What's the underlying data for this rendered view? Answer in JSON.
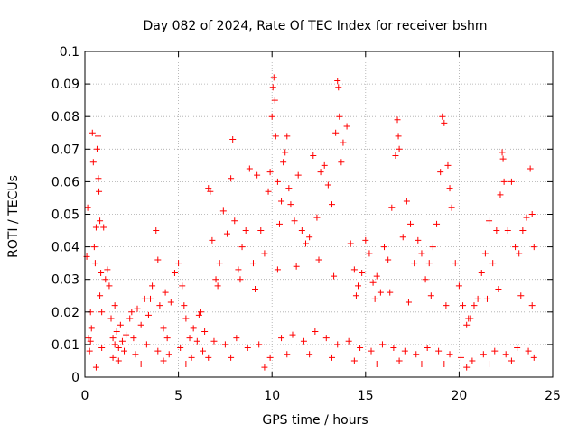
{
  "chart_data": {
    "type": "scatter",
    "title": "Day 082 of 2024, Rate Of TEC Index for receiver bshm",
    "xlabel": "GPS time / hours",
    "ylabel": "ROTI / TECUs",
    "xlim": [
      0,
      25
    ],
    "ylim": [
      0,
      0.1
    ],
    "x_ticks": [
      "0",
      "5",
      "10",
      "15",
      "20",
      "25"
    ],
    "y_ticks": [
      "0",
      "0.01",
      "0.02",
      "0.03",
      "0.04",
      "0.05",
      "0.06",
      "0.07",
      "0.08",
      "0.09",
      "0.1"
    ],
    "grid": true,
    "marker": "+",
    "color": "#ff0000",
    "points": [
      [
        0.1,
        0.037
      ],
      [
        0.15,
        0.052
      ],
      [
        0.2,
        0.012
      ],
      [
        0.25,
        0.008
      ],
      [
        0.3,
        0.02
      ],
      [
        0.35,
        0.015
      ],
      [
        0.4,
        0.075
      ],
      [
        0.45,
        0.066
      ],
      [
        0.5,
        0.04
      ],
      [
        0.55,
        0.035
      ],
      [
        0.6,
        0.046
      ],
      [
        0.65,
        0.07
      ],
      [
        0.7,
        0.074
      ],
      [
        0.72,
        0.061
      ],
      [
        0.75,
        0.057
      ],
      [
        0.8,
        0.048
      ],
      [
        0.85,
        0.032
      ],
      [
        0.9,
        0.02
      ],
      [
        1.0,
        0.046
      ],
      [
        1.1,
        0.03
      ],
      [
        1.2,
        0.033
      ],
      [
        1.3,
        0.028
      ],
      [
        1.4,
        0.018
      ],
      [
        1.5,
        0.012
      ],
      [
        1.6,
        0.01
      ],
      [
        1.7,
        0.014
      ],
      [
        1.8,
        0.009
      ],
      [
        1.9,
        0.016
      ],
      [
        2.0,
        0.011
      ],
      [
        2.2,
        0.013
      ],
      [
        2.4,
        0.018
      ],
      [
        2.6,
        0.012
      ],
      [
        2.8,
        0.021
      ],
      [
        3.0,
        0.016
      ],
      [
        3.2,
        0.024
      ],
      [
        3.4,
        0.019
      ],
      [
        3.6,
        0.028
      ],
      [
        3.8,
        0.045
      ],
      [
        3.9,
        0.036
      ],
      [
        4.0,
        0.022
      ],
      [
        4.2,
        0.015
      ],
      [
        4.4,
        0.012
      ],
      [
        4.6,
        0.023
      ],
      [
        4.8,
        0.032
      ],
      [
        5.0,
        0.035
      ],
      [
        5.2,
        0.028
      ],
      [
        5.4,
        0.018
      ],
      [
        5.6,
        0.012
      ],
      [
        5.8,
        0.015
      ],
      [
        6.0,
        0.011
      ],
      [
        6.2,
        0.02
      ],
      [
        6.4,
        0.014
      ],
      [
        6.6,
        0.058
      ],
      [
        6.7,
        0.057
      ],
      [
        6.8,
        0.042
      ],
      [
        7.0,
        0.03
      ],
      [
        7.2,
        0.035
      ],
      [
        7.4,
        0.051
      ],
      [
        7.6,
        0.044
      ],
      [
        7.8,
        0.061
      ],
      [
        7.9,
        0.073
      ],
      [
        8.0,
        0.048
      ],
      [
        8.2,
        0.033
      ],
      [
        8.4,
        0.04
      ],
      [
        8.6,
        0.045
      ],
      [
        8.8,
        0.064
      ],
      [
        9.0,
        0.035
      ],
      [
        9.2,
        0.062
      ],
      [
        9.4,
        0.045
      ],
      [
        9.6,
        0.038
      ],
      [
        9.8,
        0.057
      ],
      [
        9.9,
        0.063
      ],
      [
        10.0,
        0.08
      ],
      [
        10.05,
        0.089
      ],
      [
        10.1,
        0.092
      ],
      [
        10.15,
        0.085
      ],
      [
        10.2,
        0.074
      ],
      [
        10.3,
        0.06
      ],
      [
        10.4,
        0.047
      ],
      [
        10.5,
        0.054
      ],
      [
        10.6,
        0.066
      ],
      [
        10.7,
        0.069
      ],
      [
        10.8,
        0.074
      ],
      [
        10.9,
        0.058
      ],
      [
        11.0,
        0.053
      ],
      [
        11.2,
        0.048
      ],
      [
        11.4,
        0.062
      ],
      [
        11.6,
        0.045
      ],
      [
        11.8,
        0.041
      ],
      [
        12.0,
        0.043
      ],
      [
        12.2,
        0.068
      ],
      [
        12.4,
        0.049
      ],
      [
        12.6,
        0.063
      ],
      [
        12.8,
        0.065
      ],
      [
        13.0,
        0.059
      ],
      [
        13.2,
        0.053
      ],
      [
        13.4,
        0.075
      ],
      [
        13.5,
        0.091
      ],
      [
        13.55,
        0.089
      ],
      [
        13.6,
        0.08
      ],
      [
        13.7,
        0.066
      ],
      [
        13.8,
        0.072
      ],
      [
        14.0,
        0.077
      ],
      [
        14.2,
        0.041
      ],
      [
        14.4,
        0.033
      ],
      [
        14.6,
        0.028
      ],
      [
        14.8,
        0.032
      ],
      [
        15.0,
        0.042
      ],
      [
        15.2,
        0.038
      ],
      [
        15.4,
        0.029
      ],
      [
        15.6,
        0.031
      ],
      [
        15.8,
        0.026
      ],
      [
        16.0,
        0.04
      ],
      [
        16.2,
        0.036
      ],
      [
        16.4,
        0.052
      ],
      [
        16.6,
        0.068
      ],
      [
        16.7,
        0.079
      ],
      [
        16.75,
        0.074
      ],
      [
        16.8,
        0.07
      ],
      [
        17.0,
        0.043
      ],
      [
        17.2,
        0.054
      ],
      [
        17.4,
        0.047
      ],
      [
        17.6,
        0.035
      ],
      [
        17.8,
        0.042
      ],
      [
        18.0,
        0.038
      ],
      [
        18.2,
        0.03
      ],
      [
        18.4,
        0.035
      ],
      [
        18.6,
        0.04
      ],
      [
        18.8,
        0.047
      ],
      [
        19.0,
        0.063
      ],
      [
        19.1,
        0.08
      ],
      [
        19.2,
        0.078
      ],
      [
        19.4,
        0.065
      ],
      [
        19.5,
        0.058
      ],
      [
        19.6,
        0.052
      ],
      [
        19.8,
        0.035
      ],
      [
        20.0,
        0.028
      ],
      [
        20.2,
        0.022
      ],
      [
        20.4,
        0.016
      ],
      [
        20.6,
        0.018
      ],
      [
        20.8,
        0.022
      ],
      [
        21.0,
        0.024
      ],
      [
        21.2,
        0.032
      ],
      [
        21.4,
        0.038
      ],
      [
        21.6,
        0.048
      ],
      [
        21.8,
        0.035
      ],
      [
        22.0,
        0.045
      ],
      [
        22.2,
        0.056
      ],
      [
        22.3,
        0.069
      ],
      [
        22.35,
        0.067
      ],
      [
        22.4,
        0.06
      ],
      [
        22.6,
        0.045
      ],
      [
        22.8,
        0.06
      ],
      [
        23.0,
        0.04
      ],
      [
        23.2,
        0.038
      ],
      [
        23.4,
        0.045
      ],
      [
        23.6,
        0.049
      ],
      [
        23.8,
        0.064
      ],
      [
        23.9,
        0.05
      ],
      [
        24.0,
        0.04
      ],
      [
        0.3,
        0.011
      ],
      [
        0.9,
        0.009
      ],
      [
        1.5,
        0.006
      ],
      [
        2.1,
        0.008
      ],
      [
        2.7,
        0.007
      ],
      [
        3.3,
        0.01
      ],
      [
        3.9,
        0.008
      ],
      [
        4.5,
        0.007
      ],
      [
        5.1,
        0.009
      ],
      [
        5.7,
        0.006
      ],
      [
        6.3,
        0.008
      ],
      [
        6.9,
        0.011
      ],
      [
        7.5,
        0.01
      ],
      [
        8.1,
        0.012
      ],
      [
        8.7,
        0.009
      ],
      [
        9.3,
        0.01
      ],
      [
        9.9,
        0.006
      ],
      [
        10.5,
        0.012
      ],
      [
        11.1,
        0.013
      ],
      [
        11.7,
        0.011
      ],
      [
        12.3,
        0.014
      ],
      [
        12.9,
        0.012
      ],
      [
        13.5,
        0.01
      ],
      [
        14.1,
        0.011
      ],
      [
        14.7,
        0.009
      ],
      [
        15.3,
        0.008
      ],
      [
        15.9,
        0.01
      ],
      [
        16.5,
        0.009
      ],
      [
        17.1,
        0.008
      ],
      [
        17.7,
        0.007
      ],
      [
        18.3,
        0.009
      ],
      [
        18.9,
        0.008
      ],
      [
        19.5,
        0.007
      ],
      [
        20.1,
        0.006
      ],
      [
        20.7,
        0.005
      ],
      [
        21.3,
        0.007
      ],
      [
        21.9,
        0.008
      ],
      [
        22.5,
        0.007
      ],
      [
        23.1,
        0.009
      ],
      [
        23.7,
        0.008
      ],
      [
        0.6,
        0.003
      ],
      [
        1.8,
        0.005
      ],
      [
        3.0,
        0.004
      ],
      [
        4.2,
        0.005
      ],
      [
        5.4,
        0.004
      ],
      [
        6.6,
        0.006
      ],
      [
        7.8,
        0.006
      ],
      [
        9.6,
        0.003
      ],
      [
        10.8,
        0.007
      ],
      [
        12.0,
        0.007
      ],
      [
        13.2,
        0.006
      ],
      [
        14.4,
        0.005
      ],
      [
        15.6,
        0.004
      ],
      [
        16.8,
        0.005
      ],
      [
        18.0,
        0.004
      ],
      [
        19.2,
        0.004
      ],
      [
        20.4,
        0.003
      ],
      [
        21.6,
        0.004
      ],
      [
        22.8,
        0.005
      ],
      [
        24.0,
        0.006
      ],
      [
        0.8,
        0.025
      ],
      [
        1.6,
        0.022
      ],
      [
        2.5,
        0.02
      ],
      [
        3.5,
        0.024
      ],
      [
        4.3,
        0.026
      ],
      [
        5.3,
        0.022
      ],
      [
        6.1,
        0.019
      ],
      [
        7.1,
        0.028
      ],
      [
        8.3,
        0.03
      ],
      [
        9.1,
        0.027
      ],
      [
        10.3,
        0.033
      ],
      [
        11.3,
        0.034
      ],
      [
        12.5,
        0.036
      ],
      [
        13.3,
        0.031
      ],
      [
        14.5,
        0.025
      ],
      [
        15.5,
        0.024
      ],
      [
        16.3,
        0.026
      ],
      [
        17.3,
        0.023
      ],
      [
        18.5,
        0.025
      ],
      [
        19.3,
        0.022
      ],
      [
        20.5,
        0.018
      ],
      [
        21.5,
        0.024
      ],
      [
        22.1,
        0.027
      ],
      [
        23.3,
        0.025
      ],
      [
        23.9,
        0.022
      ]
    ]
  }
}
